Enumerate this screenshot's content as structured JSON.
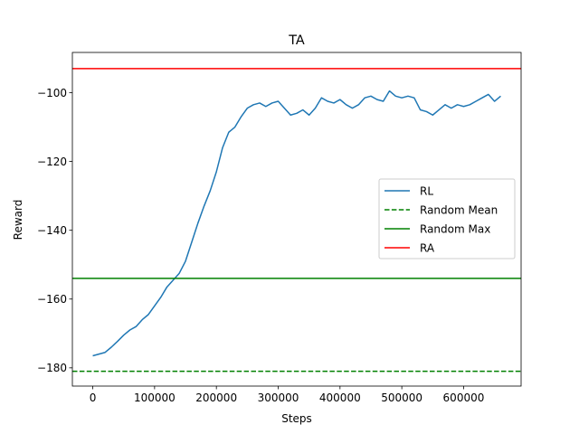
{
  "chart_data": {
    "type": "line",
    "title": "TA",
    "xlabel": "Steps",
    "ylabel": "Reward",
    "xlim": [
      -33000,
      693000
    ],
    "ylim": [
      -185.3,
      -88.3
    ],
    "x_ticks": [
      0,
      100000,
      200000,
      300000,
      400000,
      500000,
      600000
    ],
    "x_tick_labels": [
      "0",
      "100000",
      "200000",
      "300000",
      "400000",
      "500000",
      "600000"
    ],
    "y_ticks": [
      -180,
      -160,
      -140,
      -120,
      -100
    ],
    "y_tick_labels": [
      "−180",
      "−160",
      "−140",
      "−120",
      "−100"
    ],
    "grid": false,
    "legend_position": "center-right",
    "series": [
      {
        "name": "RL",
        "kind": "line",
        "color": "#1f77b4",
        "style": "solid",
        "x": [
          0,
          10000,
          20000,
          30000,
          40000,
          50000,
          60000,
          70000,
          80000,
          90000,
          100000,
          110000,
          120000,
          130000,
          140000,
          150000,
          160000,
          170000,
          180000,
          190000,
          200000,
          210000,
          220000,
          230000,
          240000,
          250000,
          260000,
          270000,
          280000,
          290000,
          300000,
          310000,
          320000,
          330000,
          340000,
          350000,
          360000,
          370000,
          380000,
          390000,
          400000,
          410000,
          420000,
          430000,
          440000,
          450000,
          460000,
          470000,
          480000,
          490000,
          500000,
          510000,
          520000,
          530000,
          540000,
          550000,
          560000,
          570000,
          580000,
          590000,
          600000,
          610000,
          620000,
          630000,
          640000,
          650000,
          660000
        ],
        "y": [
          -176.5,
          -176,
          -175.5,
          -174,
          -172.3,
          -170.5,
          -169,
          -168,
          -166,
          -164.5,
          -162,
          -159.5,
          -156.5,
          -154.5,
          -152.5,
          -149,
          -143.5,
          -138,
          -133,
          -128.5,
          -123,
          -116,
          -111.5,
          -110,
          -107,
          -104.5,
          -103.5,
          -103,
          -104,
          -103,
          -102.5,
          -104.5,
          -106.5,
          -106,
          -105,
          -106.5,
          -104.5,
          -101.5,
          -102.5,
          -103,
          -102,
          -103.5,
          -104.5,
          -103.5,
          -101.5,
          -101,
          -102,
          -102.5,
          -99.5,
          -101,
          -101.5,
          -101,
          -101.5,
          -105,
          -105.5,
          -106.5,
          -105,
          -103.5,
          -104.5,
          -103.5,
          -104,
          -103.5,
          -102.5,
          -101.5,
          -100.5,
          -102.5,
          -101
        ]
      },
      {
        "name": "Random Mean",
        "kind": "hline",
        "value": -181,
        "color": "#008000",
        "style": "dashed"
      },
      {
        "name": "Random Max",
        "kind": "hline",
        "value": -154,
        "color": "#008000",
        "style": "solid"
      },
      {
        "name": "RA",
        "kind": "hline",
        "value": -93,
        "color": "#ff0000",
        "style": "solid"
      }
    ]
  }
}
